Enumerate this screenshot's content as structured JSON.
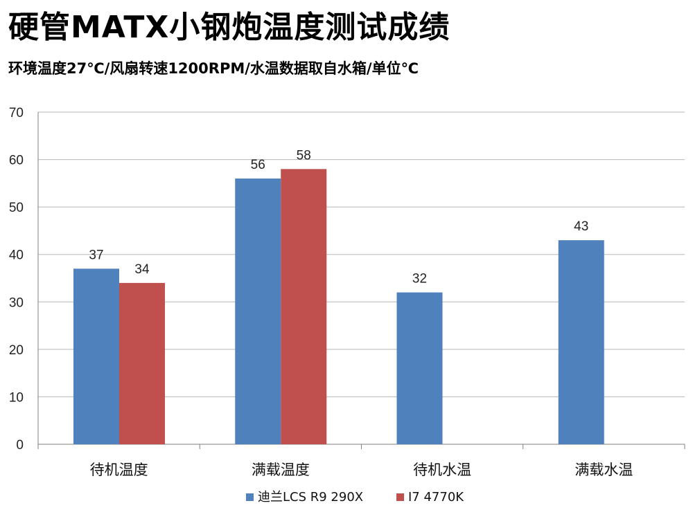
{
  "colors": {
    "series1": "#4f81bd",
    "series2": "#c0504d",
    "grid": "#b5b5b5",
    "axis": "#7f7f7f"
  },
  "chart_data": {
    "type": "bar",
    "title": "硬管MATX小钢炮温度测试成绩",
    "subtitle": "环境温度27℃/风扇转速1200RPM/水温数据取自水箱/单位℃",
    "categories": [
      "待机温度",
      "满载温度",
      "待机水温",
      "满载水温"
    ],
    "series": [
      {
        "name": "迪兰LCS R9 290X",
        "values": [
          37,
          56,
          32,
          43
        ]
      },
      {
        "name": "I7 4770K",
        "values": [
          34,
          58,
          null,
          null
        ]
      }
    ],
    "ylim": [
      0,
      70
    ],
    "yticks": [
      0,
      10,
      20,
      30,
      40,
      50,
      60,
      70
    ],
    "grid": true,
    "legend": "bottom-center",
    "xlabel": "",
    "ylabel": ""
  }
}
